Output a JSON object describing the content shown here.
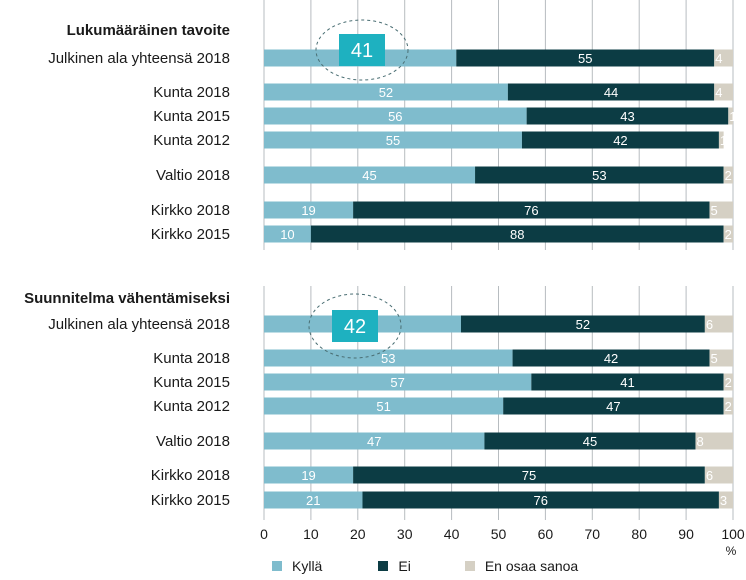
{
  "chart_data": {
    "type": "bar",
    "orientation": "horizontal",
    "stacked": true,
    "colors": {
      "Kyllä": "#7fbccd",
      "Ei": "#0c3c44",
      "En osaa sanoa": "#d5d0c4",
      "badge": "#1eb1c0"
    },
    "xlim": [
      0,
      100
    ],
    "xticks": [
      "0",
      "10",
      "20",
      "30",
      "40",
      "50",
      "60",
      "70",
      "80",
      "90",
      "100"
    ],
    "xunit": "%",
    "legend": [
      {
        "name": "Kyllä",
        "color": "#7fbccd"
      },
      {
        "name": "Ei",
        "color": "#0c3c44"
      },
      {
        "name": "En osaa sanoa",
        "color": "#d5d0c4"
      }
    ],
    "panels": [
      {
        "title": "Lukumääräinen tavoite",
        "badge": "41",
        "rows": [
          {
            "label": "Julkinen ala yhteensä 2018",
            "values": [
              41,
              55,
              4
            ],
            "labels": [
              "",
              "55",
              "4"
            ]
          },
          {
            "label": "Kunta 2018",
            "values": [
              52,
              44,
              4
            ],
            "labels": [
              "52",
              "44",
              "4"
            ]
          },
          {
            "label": "Kunta 2015",
            "values": [
              56,
              43,
              1
            ],
            "labels": [
              "56",
              "43",
              "1"
            ]
          },
          {
            "label": "Kunta 2012",
            "values": [
              55,
              42,
              1
            ],
            "labels": [
              "55",
              "42",
              "1"
            ]
          },
          {
            "label": "Valtio 2018",
            "values": [
              45,
              53,
              2
            ],
            "labels": [
              "45",
              "53",
              "2"
            ]
          },
          {
            "label": "Kirkko 2018",
            "values": [
              19,
              76,
              5
            ],
            "labels": [
              "19",
              "76",
              "5"
            ]
          },
          {
            "label": "Kirkko 2015",
            "values": [
              10,
              88,
              2
            ],
            "labels": [
              "10",
              "88",
              "2"
            ]
          }
        ]
      },
      {
        "title": "Suunnitelma vähentämiseksi",
        "badge": "42",
        "rows": [
          {
            "label": "Julkinen ala yhteensä 2018",
            "values": [
              42,
              52,
              6
            ],
            "labels": [
              "",
              "52",
              "6"
            ]
          },
          {
            "label": "Kunta 2018",
            "values": [
              53,
              42,
              5
            ],
            "labels": [
              "53",
              "42",
              "5"
            ]
          },
          {
            "label": "Kunta 2015",
            "values": [
              57,
              41,
              2
            ],
            "labels": [
              "57",
              "41",
              "2"
            ]
          },
          {
            "label": "Kunta 2012",
            "values": [
              51,
              47,
              2
            ],
            "labels": [
              "51",
              "47",
              "2"
            ]
          },
          {
            "label": "Valtio 2018",
            "values": [
              47,
              45,
              8
            ],
            "labels": [
              "47",
              "45",
              "8"
            ]
          },
          {
            "label": "Kirkko 2018",
            "values": [
              19,
              75,
              6
            ],
            "labels": [
              "19",
              "75",
              "6"
            ]
          },
          {
            "label": "Kirkko 2015",
            "values": [
              21,
              76,
              3
            ],
            "labels": [
              "21",
              "76",
              "3"
            ]
          }
        ]
      }
    ]
  }
}
